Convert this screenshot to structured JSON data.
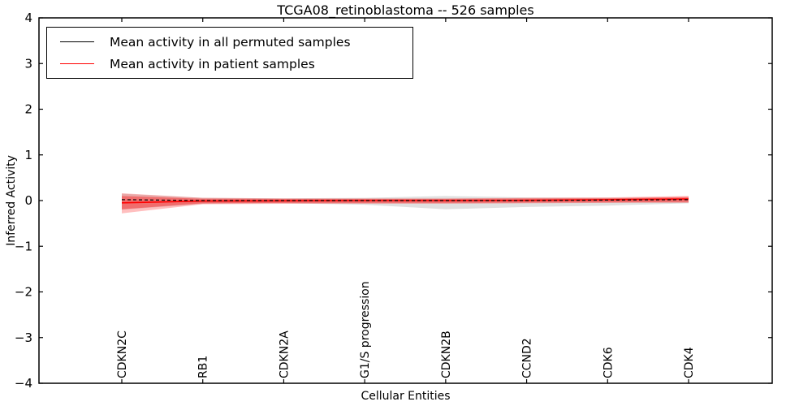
{
  "chart_data": {
    "type": "line",
    "title": "TCGA08_retinoblastoma -- 526 samples",
    "xlabel": "Cellular Entities",
    "ylabel": "Inferred Activity",
    "ylim": [
      -4,
      4
    ],
    "yticks": [
      -4,
      -3,
      -2,
      -1,
      0,
      1,
      2,
      3,
      4
    ],
    "grid": false,
    "legend_position": "upper left",
    "categories": [
      "CDKN2C",
      "RB1",
      "CDKN2A",
      "G1/S progression",
      "CDKN2B",
      "CCND2",
      "CDK6",
      "CDK4"
    ],
    "legend": [
      {
        "label": "Mean activity in all permuted samples",
        "color": "#000000"
      },
      {
        "label": "Mean activity in patient samples",
        "color": "#ff0000"
      }
    ],
    "series": [
      {
        "name": "Mean activity in all permuted samples",
        "color": "#000000",
        "style": "dashed",
        "values": [
          0.02,
          0.0,
          0.0,
          0.0,
          0.0,
          0.0,
          0.01,
          0.02
        ]
      },
      {
        "name": "Mean activity in patient samples",
        "color": "#ff0000",
        "style": "solid",
        "values": [
          -0.05,
          -0.01,
          -0.005,
          0.0,
          0.0,
          0.005,
          0.02,
          0.035
        ]
      }
    ],
    "bands": [
      {
        "name": "permuted-samples-std-band",
        "color": "#999999",
        "opacity": 0.3,
        "upper": [
          0.15,
          0.06,
          0.05,
          0.06,
          0.1,
          0.07,
          0.06,
          0.06
        ],
        "lower": [
          -0.2,
          -0.07,
          -0.06,
          -0.09,
          -0.19,
          -0.14,
          -0.11,
          -0.06
        ]
      },
      {
        "name": "patient-samples-std-outer-band",
        "color": "#ff0000",
        "opacity": 0.25,
        "upper": [
          0.16,
          0.06,
          0.05,
          0.05,
          0.05,
          0.06,
          0.07,
          0.1
        ],
        "lower": [
          -0.28,
          -0.08,
          -0.07,
          -0.07,
          -0.07,
          -0.06,
          -0.05,
          -0.05
        ]
      },
      {
        "name": "patient-samples-std-inner-band",
        "color": "#ff0000",
        "opacity": 0.35,
        "upper": [
          0.1,
          0.04,
          0.035,
          0.035,
          0.035,
          0.045,
          0.05,
          0.08
        ],
        "lower": [
          -0.19,
          -0.06,
          -0.05,
          -0.05,
          -0.05,
          -0.045,
          -0.04,
          -0.03
        ]
      }
    ]
  }
}
